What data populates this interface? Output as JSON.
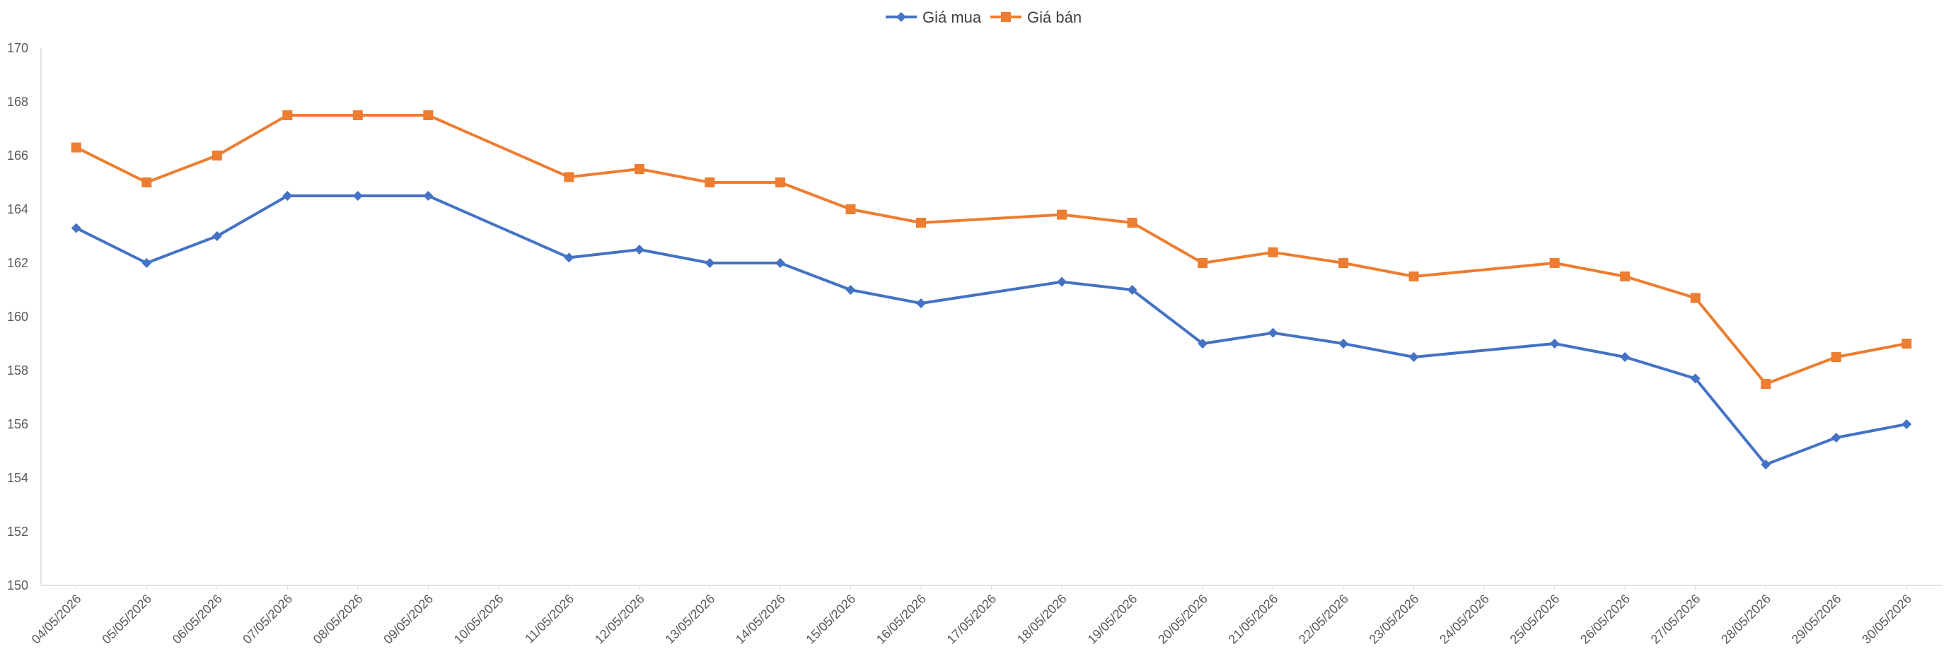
{
  "chart_data": {
    "type": "line",
    "title": "",
    "xlabel": "",
    "ylabel": "",
    "ylim": [
      150,
      170
    ],
    "yticks": [
      150,
      152,
      154,
      156,
      158,
      160,
      162,
      164,
      166,
      168,
      170
    ],
    "grid": false,
    "legend_position": "top-center",
    "categories": [
      "04/05/2026",
      "05/05/2026",
      "06/05/2026",
      "07/05/2026",
      "08/05/2026",
      "09/05/2026",
      "10/05/2026",
      "11/05/2026",
      "12/05/2026",
      "13/05/2026",
      "14/05/2026",
      "15/05/2026",
      "16/05/2026",
      "17/05/2026",
      "18/05/2026",
      "19/05/2026",
      "20/05/2026",
      "21/05/2026",
      "22/05/2026",
      "23/05/2026",
      "24/05/2026",
      "25/05/2026",
      "26/05/2026",
      "27/05/2026",
      "28/05/2026",
      "29/05/2026",
      "30/05/2026"
    ],
    "series": [
      {
        "name": "Giá mua",
        "color": "#4472C4",
        "marker": "diamond",
        "values": [
          163.3,
          162,
          163,
          164.5,
          164.5,
          164.5,
          null,
          162.2,
          162.5,
          162,
          162,
          161,
          160.5,
          null,
          161.3,
          161,
          159,
          159.4,
          159,
          158.5,
          null,
          159,
          158.5,
          157.7,
          154.5,
          155.5,
          156
        ]
      },
      {
        "name": "Giá bán",
        "color": "#ED7D31",
        "marker": "square",
        "values": [
          166.3,
          165,
          166,
          167.5,
          167.5,
          167.5,
          null,
          165.2,
          165.5,
          165,
          165,
          164,
          163.5,
          null,
          163.8,
          163.5,
          162,
          162.4,
          162,
          161.5,
          null,
          162,
          161.5,
          160.7,
          157.5,
          158.5,
          159
        ]
      }
    ]
  }
}
